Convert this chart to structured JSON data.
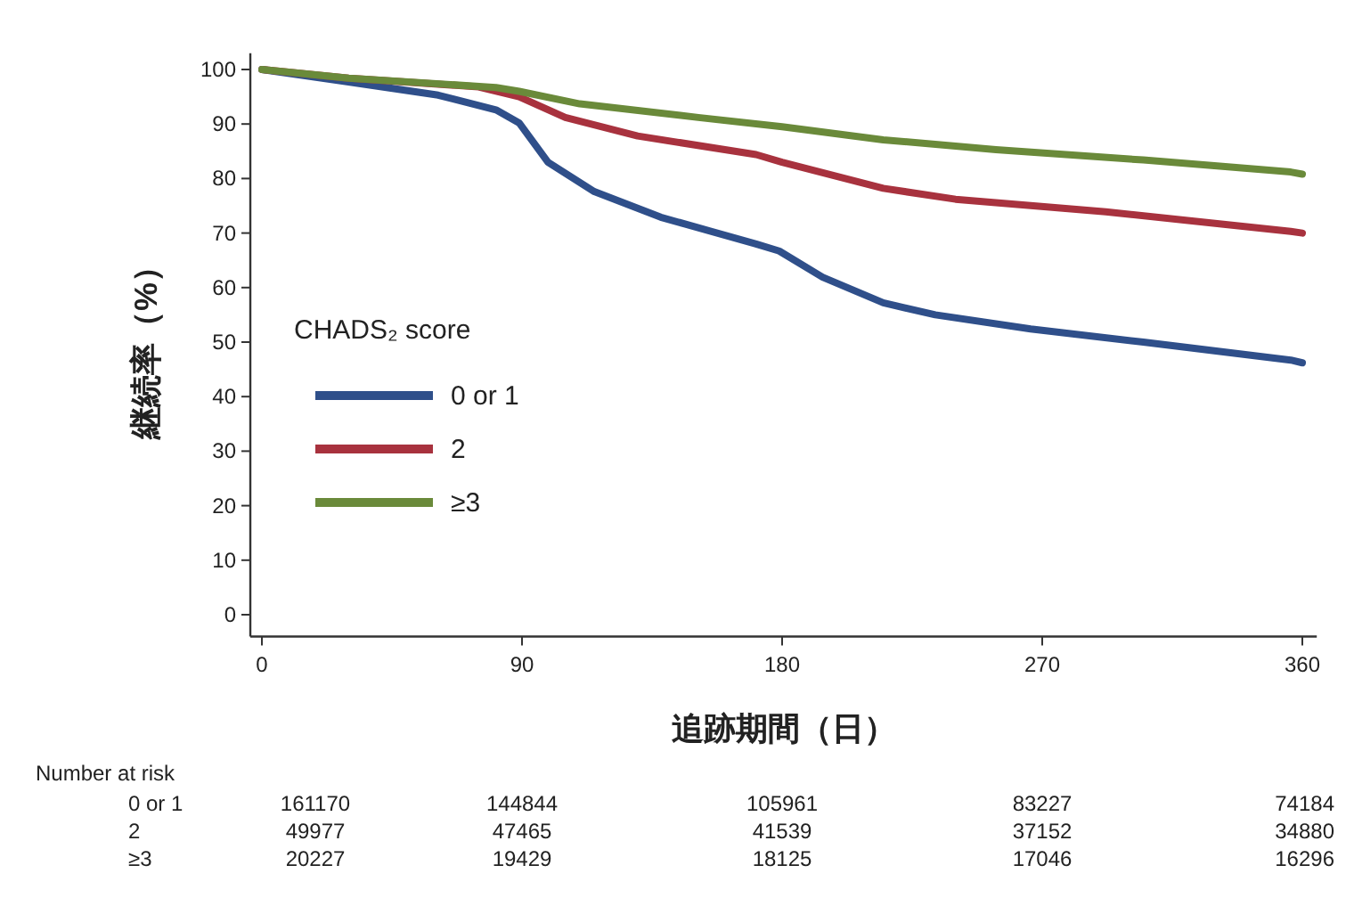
{
  "chart_data": {
    "type": "line",
    "xlabel": "追跡期間（日）",
    "ylabel": "継続率（%）",
    "legend_title": "CHADS₂ score",
    "legend": "left",
    "grid": false,
    "marker": "none",
    "line_style": "solid",
    "xlim": [
      -4,
      365
    ],
    "ylim": [
      -4,
      103
    ],
    "xticks": [
      0,
      90,
      180,
      270,
      360
    ],
    "yticks": [
      0,
      10,
      20,
      30,
      40,
      50,
      60,
      70,
      80,
      90,
      100
    ],
    "series": [
      {
        "name": "0 or 1",
        "color": "#2f4f8a",
        "x": [
          0,
          30,
          61,
          81,
          89,
          99,
          115,
          138,
          171,
          179,
          194,
          215,
          233,
          266,
          305,
          356,
          360
        ],
        "values": [
          100,
          97.7,
          95.3,
          92.6,
          90.2,
          83,
          77.6,
          72.9,
          68,
          66.7,
          61.9,
          57.2,
          55,
          52.4,
          50,
          46.7,
          46.2
        ]
      },
      {
        "name": "2",
        "color": "#a8323e",
        "x": [
          0,
          30,
          61,
          75,
          89,
          105,
          130,
          171,
          180,
          215,
          240,
          292,
          356,
          360
        ],
        "values": [
          100,
          98.4,
          97.3,
          96.8,
          95,
          91.2,
          87.8,
          84.4,
          83,
          78.2,
          76.2,
          73.9,
          70.3,
          70
        ]
      },
      {
        "name": "≥3",
        "color": "#6a8a3a",
        "x": [
          0,
          30,
          81,
          89,
          110,
          151,
          180,
          215,
          254,
          305,
          356,
          360
        ],
        "values": [
          100,
          98.4,
          96.7,
          96,
          93.7,
          91.2,
          89.5,
          87.1,
          85.3,
          83.4,
          81.2,
          80.8
        ]
      }
    ],
    "annotations": [
      "Number at risk",
      "0 or 1",
      "161170",
      "144844",
      "105961",
      "83227",
      "74184",
      "2",
      "49977",
      "47465",
      "41539",
      "37152",
      "34880",
      "≥3",
      "20227",
      "19429",
      "18125",
      "17046",
      "16296"
    ]
  }
}
